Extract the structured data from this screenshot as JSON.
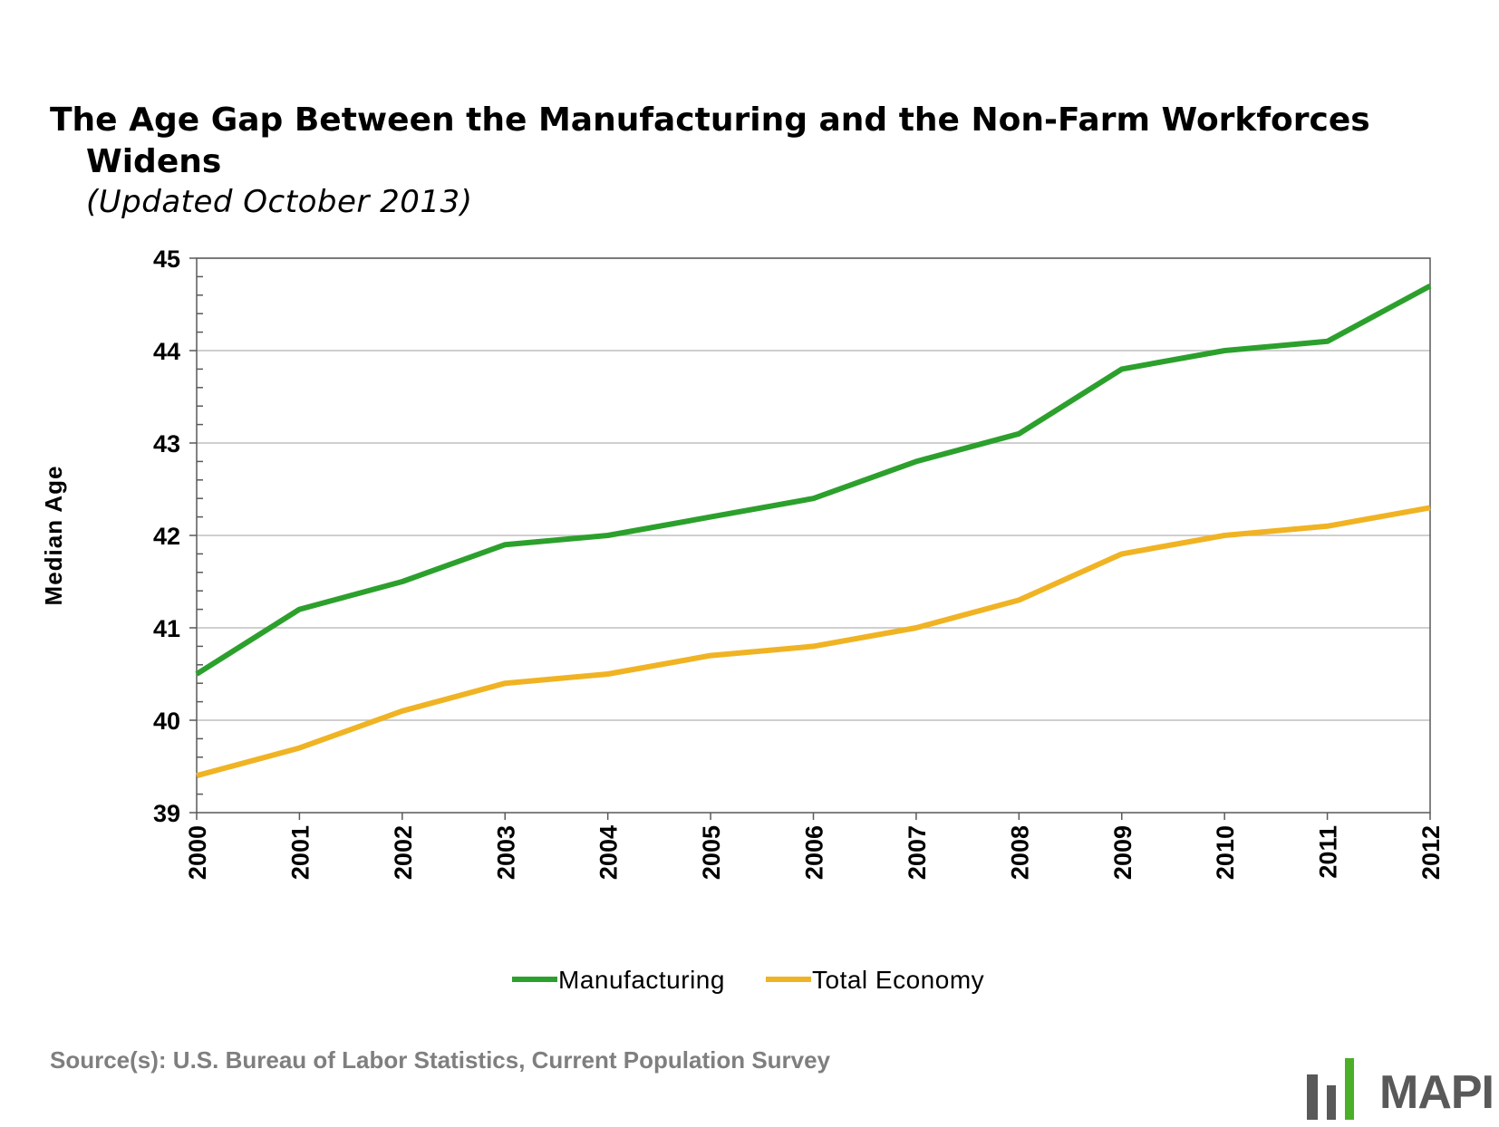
{
  "title_line1": "The Age Gap Between the Manufacturing and the Non-Farm Workforces",
  "title_line2": "Widens",
  "subtitle": "(Updated October 2013)",
  "source": "Source(s): U.S. Bureau of Labor Statistics, Current Population Survey",
  "logo_text": "MAPI",
  "colors": {
    "manufacturing": "#2ca02c",
    "total_economy": "#f0b323",
    "grid": "#bfbfbf",
    "axis": "#595959",
    "logo_green": "#4caf28",
    "logo_gray": "#595959"
  },
  "chart_data": {
    "type": "line",
    "title": "The Age Gap Between the Manufacturing and the Non-Farm Workforces Widens",
    "subtitle": "(Updated October 2013)",
    "xlabel": "",
    "ylabel": "Median Age",
    "x": [
      "2000",
      "2001",
      "2002",
      "2003",
      "2004",
      "2005",
      "2006",
      "2007",
      "2008",
      "2009",
      "2010",
      "2011",
      "2012"
    ],
    "ylim": [
      39,
      45
    ],
    "yticks": [
      39,
      40,
      41,
      42,
      43,
      44,
      45
    ],
    "grid": true,
    "legend_position": "bottom",
    "series": [
      {
        "name": "Manufacturing",
        "values": [
          40.5,
          41.2,
          41.5,
          41.9,
          42.0,
          42.2,
          42.4,
          42.8,
          43.1,
          43.8,
          44.0,
          44.1,
          44.7
        ]
      },
      {
        "name": "Total Economy",
        "values": [
          39.4,
          39.7,
          40.1,
          40.4,
          40.5,
          40.7,
          40.8,
          41.0,
          41.3,
          41.8,
          42.0,
          42.1,
          42.3
        ]
      }
    ]
  }
}
